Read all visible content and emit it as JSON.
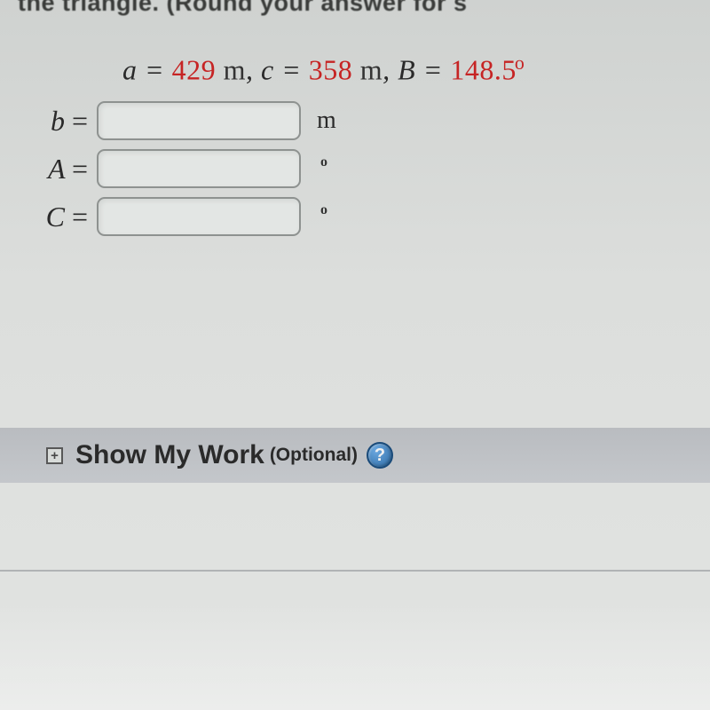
{
  "cutoff_header": "the triangle. (Round your answer for s",
  "given": {
    "a_var": "a",
    "a_val": "429",
    "a_unit": "m",
    "c_var": "c",
    "c_val": "358",
    "c_unit": "m",
    "B_var": "B",
    "B_val": "148.5",
    "deg": "o"
  },
  "answers": {
    "b": {
      "label": "b",
      "unit": "m",
      "value": ""
    },
    "A": {
      "label": "A",
      "unit": "°",
      "value": ""
    },
    "C": {
      "label": "C",
      "unit": "°",
      "value": ""
    }
  },
  "showWork": {
    "expand": "+",
    "title": "Show My Work",
    "optional": "(Optional)",
    "help": "?"
  },
  "colors": {
    "value_red": "#c62424",
    "text": "#2a2a2a",
    "border": "#8e9290"
  }
}
